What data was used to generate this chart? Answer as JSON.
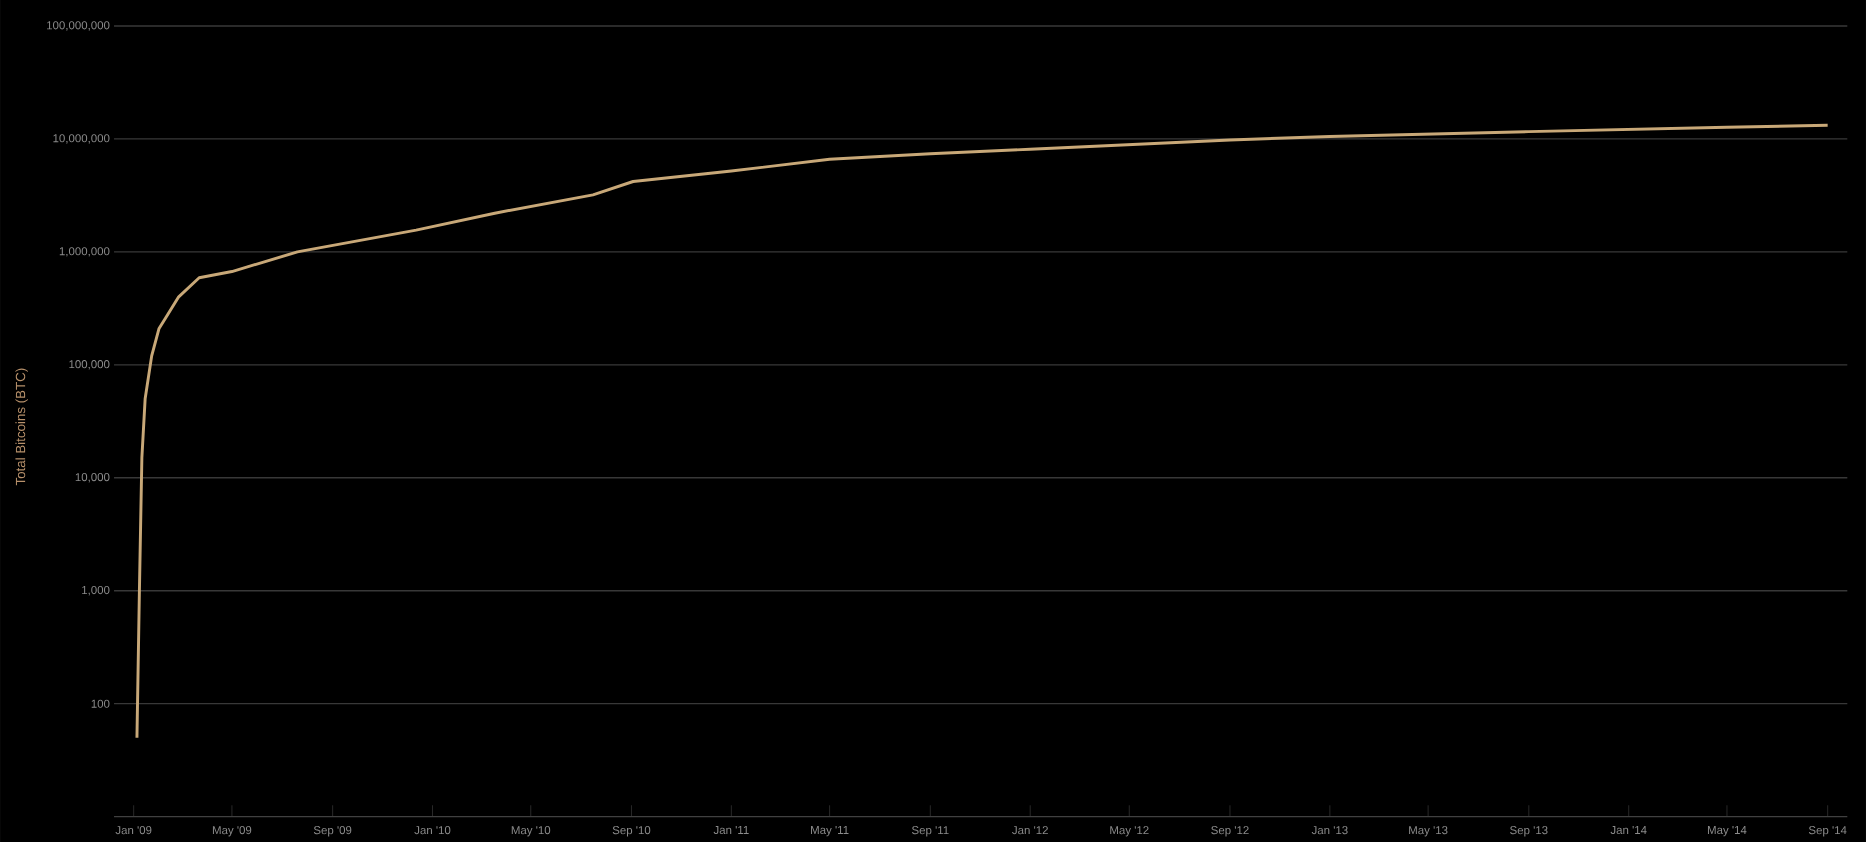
{
  "chart_data": {
    "type": "line",
    "ylabel": "Total Bitcoins (BTC)",
    "log": "y",
    "grid": "y",
    "xlim": [
      "2008-12-08",
      "2014-09-25"
    ],
    "xticks": [
      {
        "value": "2009-01-01",
        "label": "Jan '09"
      },
      {
        "value": "2009-05-01",
        "label": "May '09"
      },
      {
        "value": "2009-09-01",
        "label": "Sep '09"
      },
      {
        "value": "2010-01-01",
        "label": "Jan '10"
      },
      {
        "value": "2010-05-01",
        "label": "May '10"
      },
      {
        "value": "2010-09-01",
        "label": "Sep '10"
      },
      {
        "value": "2011-01-01",
        "label": "Jan '11"
      },
      {
        "value": "2011-05-01",
        "label": "May '11"
      },
      {
        "value": "2011-09-01",
        "label": "Sep '11"
      },
      {
        "value": "2012-01-01",
        "label": "Jan '12"
      },
      {
        "value": "2012-05-01",
        "label": "May '12"
      },
      {
        "value": "2012-09-01",
        "label": "Sep '12"
      },
      {
        "value": "2013-01-01",
        "label": "Jan '13"
      },
      {
        "value": "2013-05-01",
        "label": "May '13"
      },
      {
        "value": "2013-09-01",
        "label": "Sep '13"
      },
      {
        "value": "2014-01-01",
        "label": "Jan '14"
      },
      {
        "value": "2014-05-01",
        "label": "May '14"
      },
      {
        "value": "2014-09-01",
        "label": "Sep '14"
      }
    ],
    "ylim": [
      10,
      100000000
    ],
    "yticks": [
      {
        "value": 100,
        "label": "100"
      },
      {
        "value": 1000,
        "label": "1,000"
      },
      {
        "value": 10000,
        "label": "10,000"
      },
      {
        "value": 100000,
        "label": "100,000"
      },
      {
        "value": 1000000,
        "label": "1,000,000"
      },
      {
        "value": 10000000,
        "label": "10,000,000"
      },
      {
        "value": 100000000,
        "label": "100,000,000"
      }
    ],
    "x": [
      "2009-01-05",
      "2009-01-08",
      "2009-01-11",
      "2009-01-15",
      "2009-01-23",
      "2009-02-01",
      "2009-02-09",
      "2009-02-25",
      "2009-03-22",
      "2009-05-01",
      "2009-07-20",
      "2009-12-12",
      "2010-03-18",
      "2010-07-16",
      "2010-09-03",
      "2011-01-01",
      "2011-05-01",
      "2011-09-01",
      "2012-01-01",
      "2012-09-01",
      "2013-01-01",
      "2013-09-01",
      "2014-05-01",
      "2014-09-01"
    ],
    "series": [
      {
        "color": "#c8a878",
        "values": [
          50,
          1000,
          15000,
          50000,
          120000,
          210000,
          260000,
          400000,
          590000,
          670000,
          1000000,
          1560000,
          2200000,
          3200000,
          4200000,
          5200000,
          6600000,
          7400000,
          8100000,
          9800000,
          10500000,
          11600000,
          12700000,
          13200000
        ]
      }
    ]
  }
}
